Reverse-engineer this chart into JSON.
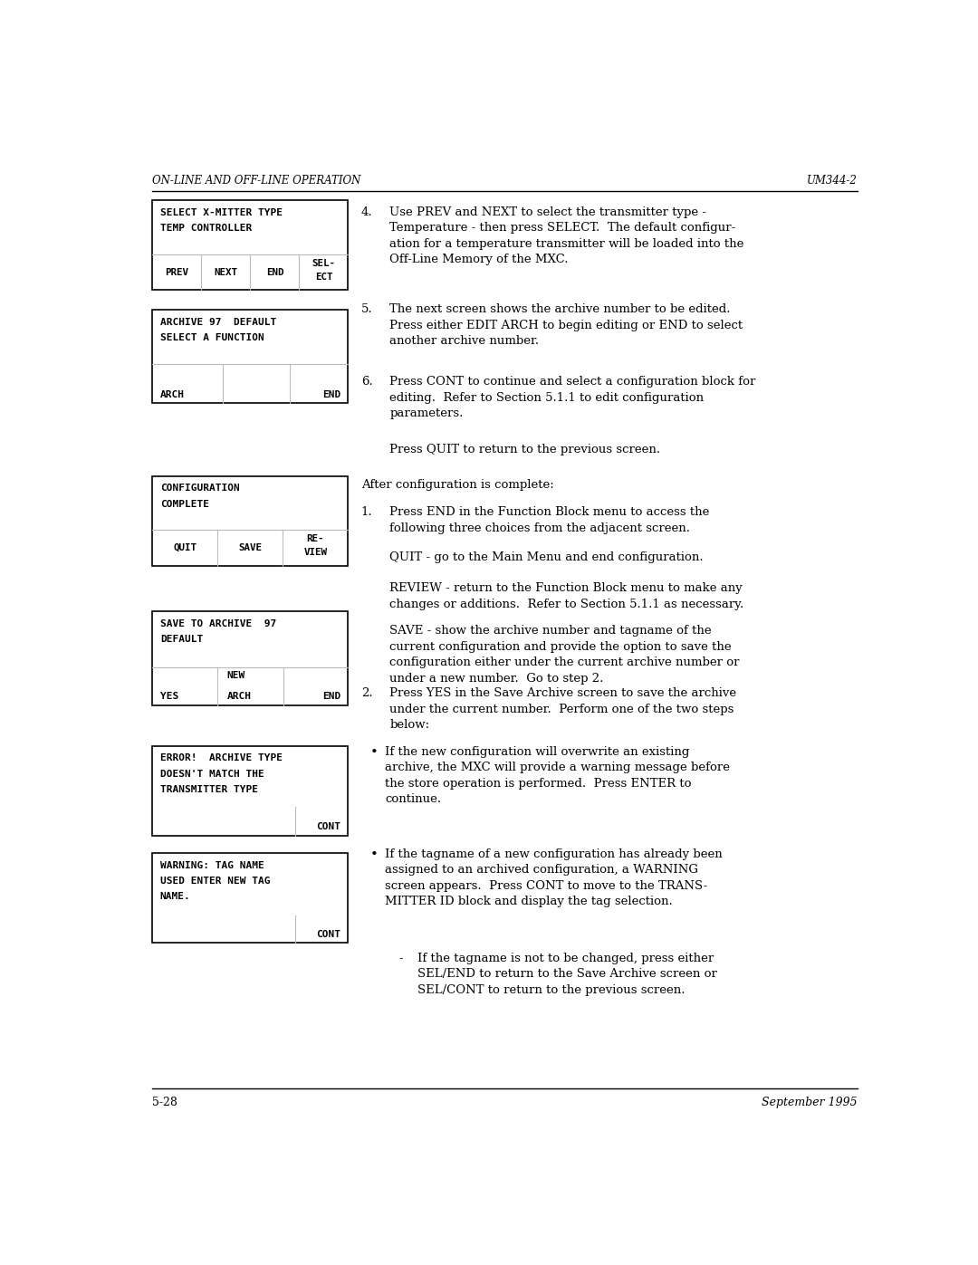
{
  "header_left": "ON-LINE AND OFF-LINE OPERATION",
  "header_right": "UM344-2",
  "footer_left": "5-28",
  "footer_right": "September 1995",
  "bg_color": "#ffffff",
  "text_color": "#000000",
  "box_border_color": "#000000",
  "box_bg_color": "#ffffff",
  "separator_color": "#bbbbbb"
}
